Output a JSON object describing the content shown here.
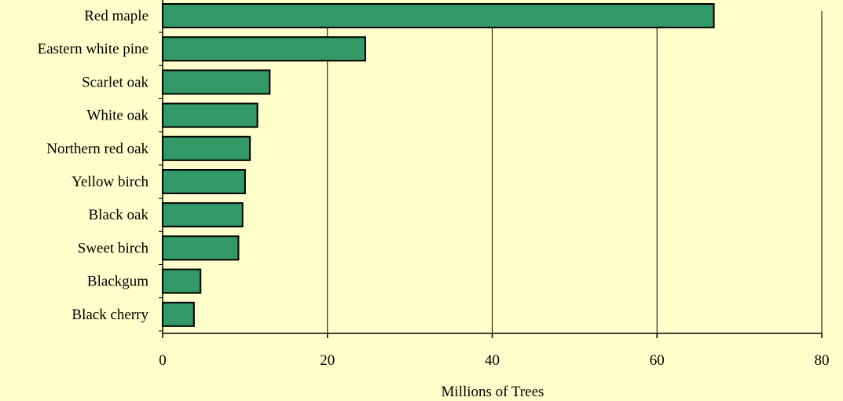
{
  "chart_data": {
    "type": "bar",
    "orientation": "horizontal",
    "categories": [
      "Red maple",
      "Eastern white pine",
      "Scarlet oak",
      "White oak",
      "Northern red oak",
      "Yellow birch",
      "Black oak",
      "Sweet birch",
      "Blackgum",
      "Black cherry"
    ],
    "values": [
      66.9,
      24.6,
      13.0,
      11.5,
      10.6,
      10.0,
      9.7,
      9.2,
      4.6,
      3.8
    ],
    "xlabel": "Millions of Trees",
    "ylabel": "",
    "xlim": [
      0,
      80
    ],
    "xticks": [
      "0",
      "20",
      "40",
      "60",
      "80"
    ],
    "xtick_values": [
      0,
      20,
      40,
      60,
      80
    ],
    "grid": "vertical",
    "legend": "none",
    "colors": {
      "background": "#ffffcc",
      "bar_fill": "#339966",
      "bar_stroke": "#000000",
      "grid": "#000000"
    }
  }
}
